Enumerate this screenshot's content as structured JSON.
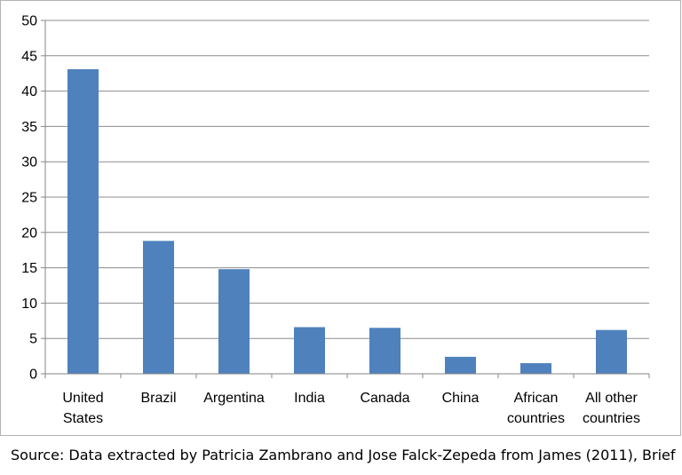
{
  "chart_data": {
    "type": "bar",
    "title": "",
    "xlabel": "",
    "ylabel": "",
    "categories": [
      [
        "United",
        "States"
      ],
      [
        "Brazil"
      ],
      [
        "Argentina"
      ],
      [
        "India"
      ],
      [
        "Canada"
      ],
      [
        "China"
      ],
      [
        "African",
        "countries"
      ],
      [
        "All other",
        "countries"
      ]
    ],
    "values": [
      43.1,
      18.8,
      14.8,
      6.6,
      6.5,
      2.4,
      1.5,
      6.2
    ],
    "ylim": [
      0,
      50
    ],
    "yticks": [
      0,
      5,
      10,
      15,
      20,
      25,
      30,
      35,
      40,
      45,
      50
    ],
    "grid": true,
    "legend": "none",
    "bar_color": "#4f81bd"
  },
  "caption": {
    "source": "Source: Data extracted by Patricia Zambrano and Jose Falck-Zepeda from James (2011), Brief",
    "second_line": "…"
  }
}
